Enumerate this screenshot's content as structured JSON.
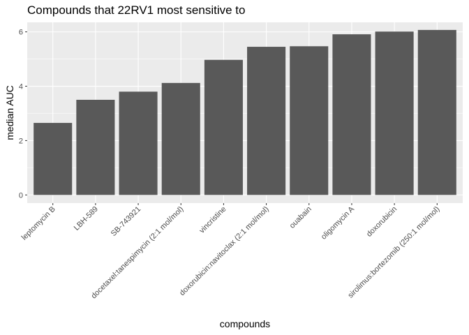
{
  "chart_data": {
    "type": "bar",
    "title": "Compounds that 22RV1 most sensitive to",
    "xlabel": "compounds",
    "ylabel": "median AUC",
    "ylim": [
      -0.3,
      6.35
    ],
    "yticks": [
      0,
      2,
      4,
      6
    ],
    "grid": true,
    "categories": [
      "leptomycin B",
      "LBH-589",
      "SB-743921",
      "docetaxel:tanespimycin (2:1 mol/mol)",
      "vincristine",
      "doxorubicin:navitoclax (2:1 mol/mol)",
      "ouabain",
      "oligomycin A",
      "doxorubicin",
      "sirolimus:bortezomib (250:1 mol/mol)"
    ],
    "values": [
      2.65,
      3.5,
      3.8,
      4.12,
      4.97,
      5.45,
      5.47,
      5.91,
      6.01,
      6.07
    ],
    "bar_color": "#595959",
    "panel_background": "#ebebeb",
    "grid_color": "#ffffff"
  }
}
